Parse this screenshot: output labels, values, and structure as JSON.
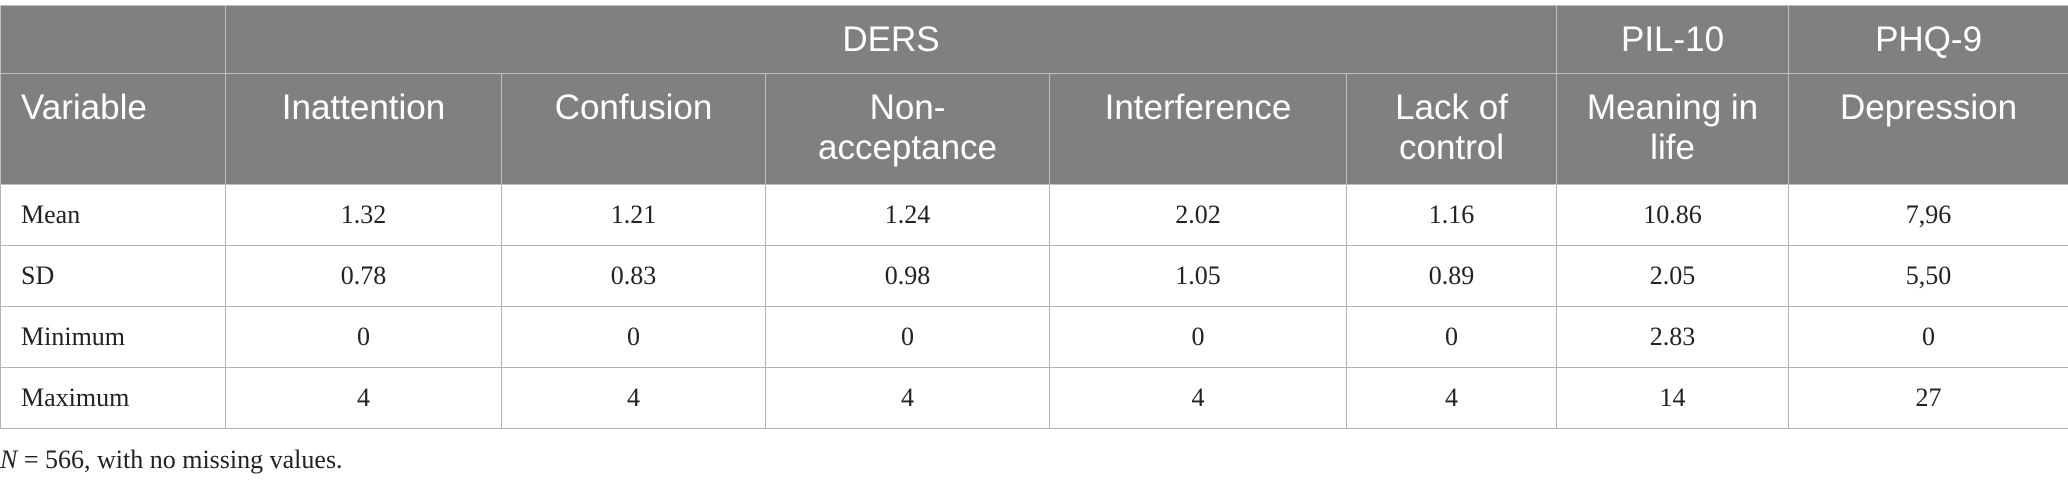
{
  "table": {
    "group_headers": {
      "ders": "DERS",
      "pil10": "PIL-10",
      "phq9": "PHQ-9"
    },
    "column_headers": [
      "Variable",
      "Inattention",
      "Confusion",
      "Non-\nacceptance",
      "Interference",
      "Lack of\ncontrol",
      "Meaning in\nlife",
      "Depression"
    ],
    "rows": [
      [
        "Mean",
        "1.32",
        "1.21",
        "1.24",
        "2.02",
        "1.16",
        "10.86",
        "7,96"
      ],
      [
        "SD",
        "0.78",
        "0.83",
        "0.98",
        "1.05",
        "0.89",
        "2.05",
        "5,50"
      ],
      [
        "Minimum",
        "0",
        "0",
        "0",
        "0",
        "0",
        "2.83",
        "0"
      ],
      [
        "Maximum",
        "4",
        "4",
        "4",
        "4",
        "4",
        "14",
        "27"
      ]
    ]
  },
  "footnote": {
    "n_symbol": "N",
    "text": " = 566, with no missing values."
  }
}
